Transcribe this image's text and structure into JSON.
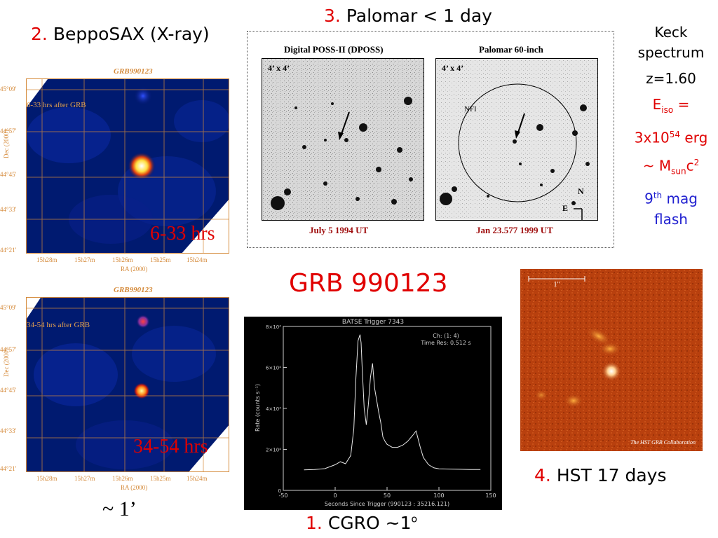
{
  "slide": {
    "title": "GRB 990123",
    "labels": {
      "beppo": {
        "num": "2.",
        "text": "BeppoSAX (X-ray)"
      },
      "palomar": {
        "num": "3.",
        "text": "Palomar < 1 day"
      },
      "hst": {
        "num": "4.",
        "text": "HST 17 days"
      },
      "cgro": {
        "num": "1.",
        "text": "CGRO  ~1",
        "sup": "o"
      },
      "scale": "~ 1’"
    },
    "keck": {
      "line1": "Keck",
      "line2": "spectrum",
      "z": "z=1.60",
      "e_pre": "E",
      "e_sub": "iso",
      "e_post": " =",
      "energy_base": "3x10",
      "energy_exp": "54",
      "energy_unit": " erg",
      "m_pre": "~ M",
      "m_sub": "sun",
      "m_c": "c",
      "m_exp": "2",
      "mag_num": "9",
      "mag_sup": "th",
      "mag_word": " mag",
      "flash": "flash"
    }
  },
  "sax_panels": [
    {
      "title": "GRB990123",
      "note": "6-33 hrs after GRB",
      "big": "6-33 hrs",
      "dec_label": "Dec (2000)",
      "ra_label": "RA (2000)",
      "yticks": [
        "45°09'",
        "44°57'",
        "44°45'",
        "44°33'",
        "44°21'"
      ],
      "xticks": [
        "15h28m",
        "15h27m",
        "15h26m",
        "15h25m",
        "15h24m"
      ]
    },
    {
      "title": "GRB990123",
      "note": "34-54 hrs after GRB",
      "big": "34-54 hrs",
      "dec_label": "Dec (2000)",
      "ra_label": "RA (2000)",
      "yticks": [
        "45°09'",
        "44°57'",
        "44°45'",
        "44°33'",
        "44°21'"
      ],
      "xticks": [
        "15h28m",
        "15h27m",
        "15h26m",
        "15h25m",
        "15h24m"
      ]
    }
  ],
  "palomar": {
    "left": {
      "heading": "Digital POSS-II (DPOSS)",
      "size": "4’ x 4’",
      "date": "July 5 1994 UT"
    },
    "right": {
      "heading": "Palomar 60-inch",
      "size": "4’ x 4’",
      "date": "Jan 23.577 1999 UT",
      "nfi": "NFI",
      "north": "N",
      "east": "E"
    }
  },
  "hst_image": {
    "scale": "1\"",
    "credit": "The HST GRB Collaboration"
  },
  "chart_data": {
    "type": "line",
    "title": "BATSE Trigger 7343",
    "info_line1": "Ch: (1: 4)",
    "info_line2": "Time Res: 0.512 s",
    "xlabel": "Seconds Since Trigger (990123 : 35216.121)",
    "ylabel": "Rate (counts s⁻¹)",
    "xlim": [
      -50,
      150
    ],
    "ylim": [
      0,
      80000
    ],
    "xticks": [
      -50,
      0,
      50,
      100,
      150
    ],
    "ytick_labels": [
      "0",
      "2×10⁴",
      "4×10⁴",
      "6×10⁴",
      "8×10⁴"
    ],
    "yticks": [
      0,
      20000,
      40000,
      60000,
      80000
    ],
    "x": [
      -30,
      -20,
      -10,
      0,
      5,
      10,
      15,
      18,
      20,
      22,
      24,
      25,
      26,
      28,
      30,
      32,
      34,
      36,
      38,
      40,
      42,
      44,
      46,
      48,
      50,
      55,
      60,
      65,
      70,
      75,
      78,
      80,
      82,
      85,
      90,
      95,
      100,
      110,
      120,
      130,
      140
    ],
    "y": [
      10000,
      10200,
      10600,
      12500,
      14000,
      13000,
      17000,
      30000,
      55000,
      73000,
      76000,
      72000,
      60000,
      40000,
      32000,
      42000,
      55000,
      62000,
      50000,
      44000,
      38000,
      33000,
      26000,
      24000,
      22500,
      21000,
      21000,
      22000,
      24000,
      27000,
      29000,
      25000,
      21000,
      16000,
      12500,
      11000,
      10500,
      10400,
      10300,
      10200,
      10200
    ]
  }
}
